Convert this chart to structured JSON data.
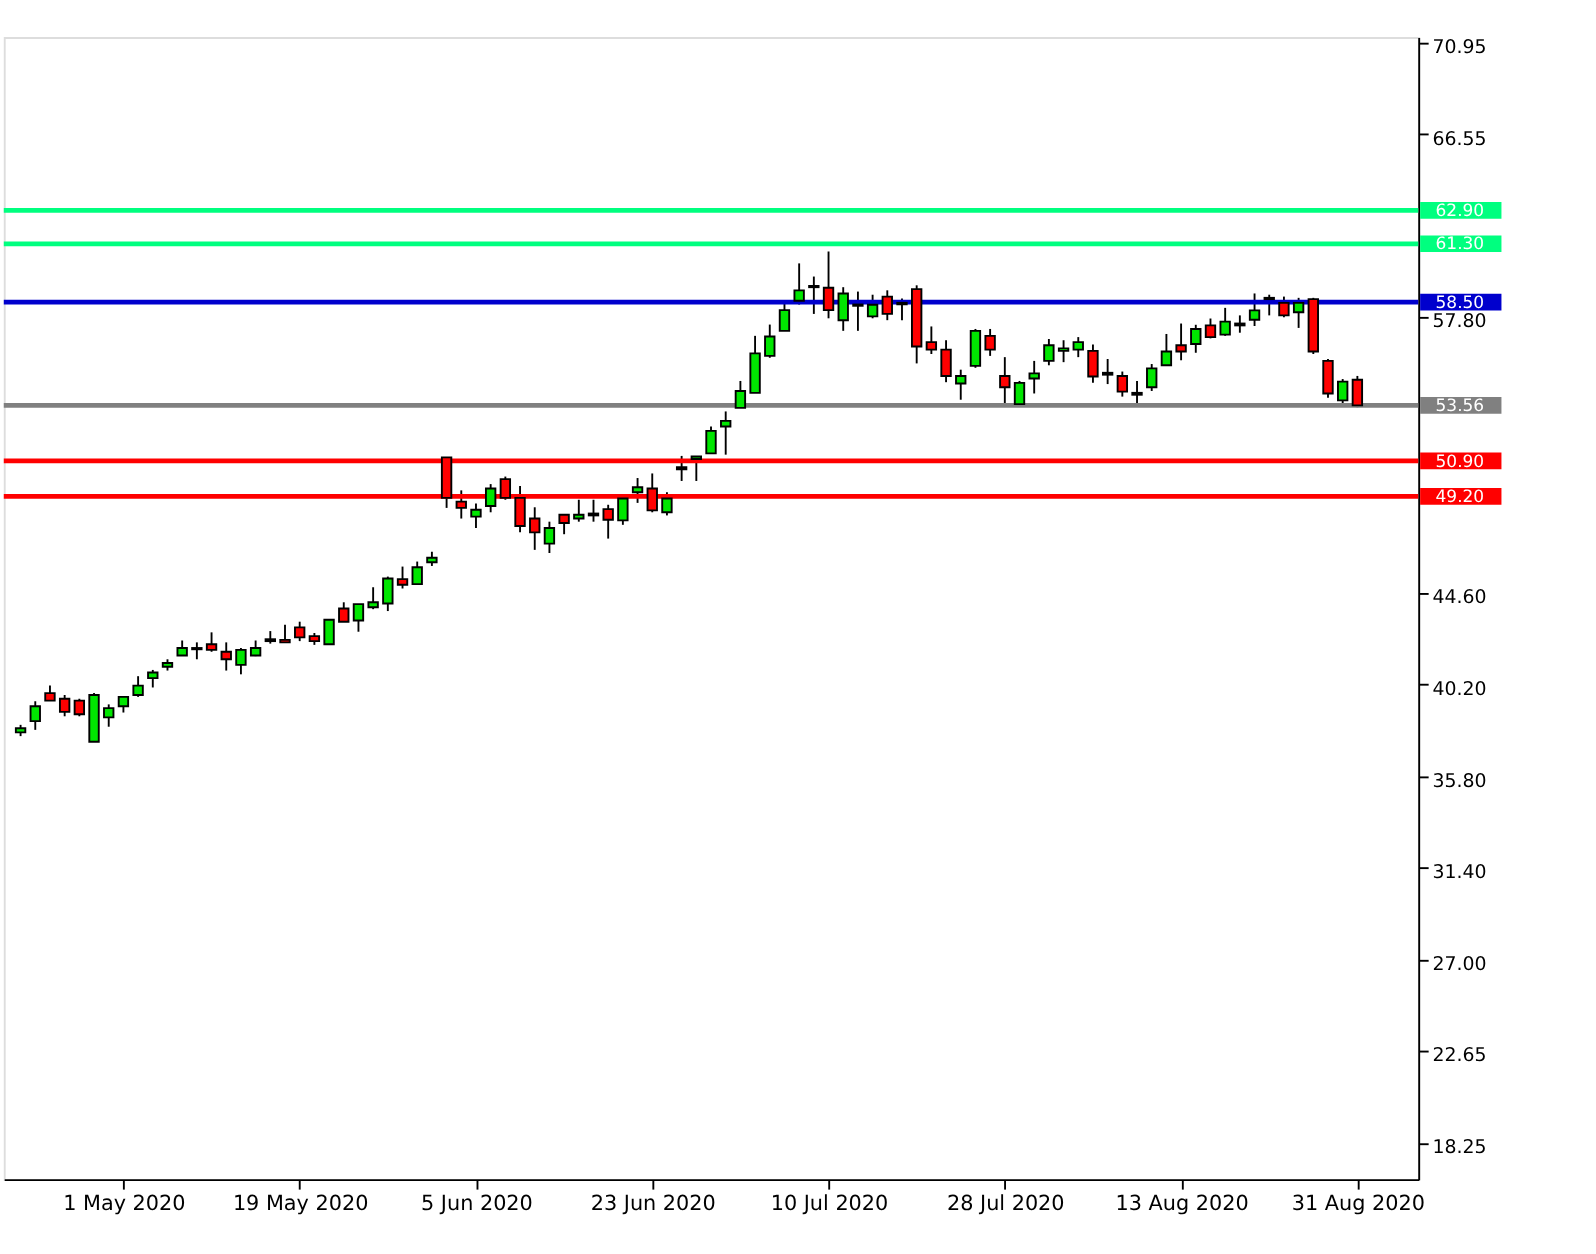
{
  "chart_data": {
    "type": "candlestick",
    "categories": [
      null,
      null,
      null,
      null,
      null,
      null,
      null,
      "1 May 2020",
      null,
      null,
      null,
      null,
      null,
      null,
      null,
      null,
      null,
      null,
      null,
      "19 May 2020",
      null,
      null,
      null,
      null,
      null,
      null,
      null,
      null,
      null,
      null,
      null,
      "5 Jun 2020",
      null,
      null,
      null,
      null,
      null,
      null,
      null,
      null,
      null,
      null,
      null,
      "23 Jun 2020",
      null,
      null,
      null,
      null,
      null,
      null,
      null,
      null,
      null,
      null,
      null,
      "10 Jul 2020",
      null,
      null,
      null,
      null,
      null,
      null,
      null,
      null,
      null,
      null,
      null,
      "28 Jul 2020",
      null,
      null,
      null,
      null,
      null,
      null,
      null,
      null,
      null,
      null,
      null,
      "13 Aug 2020",
      null,
      null,
      null,
      null,
      null,
      null,
      null,
      null,
      null,
      null,
      null,
      "31 Aug 2020"
    ],
    "ohlc": [
      [
        37.9,
        38.26,
        37.72,
        38.1
      ],
      [
        38.44,
        39.39,
        38.02,
        39.15
      ],
      [
        39.78,
        40.14,
        39.42,
        39.42
      ],
      [
        39.51,
        39.69,
        38.67,
        38.88
      ],
      [
        39.42,
        39.51,
        38.67,
        38.77
      ],
      [
        37.45,
        39.78,
        37.45,
        39.69
      ],
      [
        38.62,
        39.24,
        38.17,
        39.06
      ],
      [
        39.15,
        39.6,
        38.85,
        39.6
      ],
      [
        39.69,
        40.59,
        39.6,
        40.14
      ],
      [
        40.5,
        40.89,
        40.05,
        40.77
      ],
      [
        41.04,
        41.4,
        40.86,
        41.22
      ],
      [
        41.58,
        42.3,
        41.58,
        41.94
      ],
      [
        41.88,
        42.21,
        41.4,
        41.94
      ],
      [
        42.12,
        42.69,
        41.76,
        41.85
      ],
      [
        41.76,
        42.21,
        40.86,
        41.4
      ],
      [
        41.13,
        41.94,
        40.68,
        41.85
      ],
      [
        41.58,
        42.3,
        41.55,
        41.94
      ],
      [
        42.27,
        42.75,
        42.15,
        42.36
      ],
      [
        42.33,
        43.05,
        42.21,
        42.21
      ],
      [
        42.93,
        43.2,
        42.27,
        42.45
      ],
      [
        42.51,
        42.66,
        42.09,
        42.27
      ],
      [
        42.12,
        43.29,
        42.12,
        43.29
      ],
      [
        43.83,
        44.13,
        43.2,
        43.2
      ],
      [
        43.26,
        44.04,
        42.72,
        44.04
      ],
      [
        43.89,
        44.85,
        43.8,
        44.13
      ],
      [
        44.07,
        45.36,
        43.71,
        45.27
      ],
      [
        45.24,
        45.84,
        44.79,
        44.97
      ],
      [
        45.0,
        46.08,
        45.0,
        45.81
      ],
      [
        46.05,
        46.55,
        45.87,
        46.26
      ],
      [
        51.07,
        51.08,
        48.65,
        49.13
      ],
      [
        48.95,
        49.49,
        48.14,
        48.65
      ],
      [
        48.23,
        48.86,
        47.69,
        48.56
      ],
      [
        48.74,
        49.79,
        48.44,
        49.58
      ],
      [
        50.03,
        50.15,
        49.04,
        49.13
      ],
      [
        49.13,
        49.7,
        47.48,
        47.78
      ],
      [
        48.14,
        48.68,
        46.64,
        47.48
      ],
      [
        46.94,
        47.99,
        46.49,
        47.69
      ],
      [
        48.32,
        48.32,
        47.39,
        47.93
      ],
      [
        48.14,
        49.04,
        47.99,
        48.32
      ],
      [
        48.29,
        49.04,
        47.99,
        48.38
      ],
      [
        48.59,
        48.8,
        47.18,
        48.08
      ],
      [
        48.05,
        49.1,
        47.84,
        49.1
      ],
      [
        49.4,
        50.08,
        48.89,
        49.64
      ],
      [
        49.58,
        50.3,
        48.44,
        48.53
      ],
      [
        48.44,
        49.4,
        48.29,
        49.1
      ],
      [
        50.5,
        51.14,
        49.94,
        50.6
      ],
      [
        50.99,
        51.11,
        49.94,
        51.11
      ],
      [
        51.26,
        52.55,
        51.26,
        52.34
      ],
      [
        52.55,
        53.27,
        51.2,
        52.82
      ],
      [
        53.44,
        54.73,
        53.44,
        54.25
      ],
      [
        54.16,
        56.89,
        54.16,
        56.05
      ],
      [
        55.93,
        57.43,
        55.84,
        56.86
      ],
      [
        57.13,
        58.54,
        57.13,
        58.12
      ],
      [
        58.57,
        60.36,
        58.39,
        59.07
      ],
      [
        59.22,
        59.73,
        57.94,
        59.28
      ],
      [
        59.19,
        60.93,
        57.73,
        58.12
      ],
      [
        57.64,
        59.22,
        57.13,
        58.92
      ],
      [
        58.33,
        59.01,
        57.13,
        58.39
      ],
      [
        57.82,
        58.86,
        57.73,
        58.38
      ],
      [
        58.77,
        59.07,
        57.64,
        57.94
      ],
      [
        58.47,
        58.68,
        57.64,
        58.4
      ],
      [
        59.13,
        59.31,
        55.57,
        56.38
      ],
      [
        56.59,
        57.34,
        56.02,
        56.23
      ],
      [
        56.23,
        56.68,
        54.67,
        54.97
      ],
      [
        54.61,
        55.27,
        53.83,
        54.97
      ],
      [
        55.45,
        57.22,
        55.36,
        57.13
      ],
      [
        56.89,
        57.22,
        55.93,
        56.23
      ],
      [
        54.97,
        55.87,
        53.53,
        54.43
      ],
      [
        53.62,
        54.73,
        53.53,
        54.64
      ],
      [
        54.85,
        55.69,
        54.13,
        55.09
      ],
      [
        55.69,
        56.74,
        55.48,
        56.44
      ],
      [
        56.17,
        56.68,
        55.63,
        56.29
      ],
      [
        56.23,
        56.83,
        55.87,
        56.59
      ],
      [
        56.17,
        56.47,
        54.64,
        54.94
      ],
      [
        55.03,
        55.78,
        54.58,
        55.12
      ],
      [
        54.97,
        55.18,
        53.98,
        54.22
      ],
      [
        54.16,
        54.73,
        53.59,
        54.07
      ],
      [
        54.43,
        55.54,
        54.25,
        55.33
      ],
      [
        55.48,
        56.98,
        55.48,
        56.14
      ],
      [
        56.44,
        57.48,
        55.72,
        56.14
      ],
      [
        56.5,
        57.42,
        56.08,
        57.22
      ],
      [
        57.39,
        57.72,
        56.77,
        56.83
      ],
      [
        56.95,
        58.23,
        56.89,
        57.57
      ],
      [
        57.39,
        57.87,
        57.04,
        57.48
      ],
      [
        57.66,
        58.92,
        57.36,
        58.11
      ],
      [
        58.65,
        58.86,
        57.87,
        58.71
      ],
      [
        58.47,
        58.77,
        57.78,
        57.87
      ],
      [
        58.02,
        58.71,
        57.27,
        58.47
      ],
      [
        58.65,
        58.71,
        56.02,
        56.14
      ],
      [
        55.69,
        55.78,
        53.92,
        54.13
      ],
      [
        53.8,
        54.82,
        53.53,
        54.7
      ],
      [
        54.79,
        54.97,
        53.47,
        53.56
      ]
    ],
    "colors": [
      "#00e600",
      "#00e600",
      "#ff0000",
      "#ff0000",
      "#ff0000",
      "#00e600",
      "#00e600",
      "#00e600",
      "#00e600",
      "#00e600",
      "#00e600",
      "#00e600",
      "#00e600",
      "#ff0000",
      "#ff0000",
      "#00e600",
      "#00e600",
      "#00e600",
      "#ff0000",
      "#ff0000",
      "#ff0000",
      "#00e600",
      "#ff0000",
      "#00e600",
      "#00e600",
      "#00e600",
      "#ff0000",
      "#00e600",
      "#00e600",
      "#ff0000",
      "#ff0000",
      "#00e600",
      "#00e600",
      "#ff0000",
      "#ff0000",
      "#ff0000",
      "#00e600",
      "#ff0000",
      "#00e600",
      "#00e600",
      "#ff0000",
      "#00e600",
      "#00e600",
      "#ff0000",
      "#00e600",
      "#00e600",
      "#00e600",
      "#00e600",
      "#00e600",
      "#00e600",
      "#00e600",
      "#00e600",
      "#00e600",
      "#00e600",
      "#00e600",
      "#ff0000",
      "#00e600",
      "#00e600",
      "#00e600",
      "#ff0000",
      "#ff0000",
      "#ff0000",
      "#ff0000",
      "#ff0000",
      "#00e600",
      "#00e600",
      "#ff0000",
      "#ff0000",
      "#00e600",
      "#00e600",
      "#00e600",
      "#00e600",
      "#00e600",
      "#ff0000",
      "#00e600",
      "#ff0000",
      "#ff0000",
      "#00e600",
      "#00e600",
      "#ff0000",
      "#00e600",
      "#ff0000",
      "#00e600",
      "#00e600",
      "#00e600",
      "#00e600",
      "#ff0000",
      "#00e600",
      "#ff0000",
      "#ff0000",
      "#00e600",
      "#ff0000"
    ],
    "ylim": [
      16.5,
      71.2
    ],
    "yticks": [
      18.25,
      22.65,
      {
        "value": 27.0,
        "label": "27.00"
      },
      {
        "value": 31.4,
        "label": "31.40"
      },
      {
        "value": 35.8,
        "label": "35.80"
      },
      {
        "value": 40.2,
        "label": "40.20"
      },
      {
        "value": 44.6,
        "label": "44.60"
      },
      {
        "value": 57.8,
        "label": "57.80"
      },
      66.55,
      70.95
    ],
    "ref_lines": [
      {
        "axis": "y",
        "value": 62.9,
        "label": "62.90",
        "color": "#00ff7f"
      },
      {
        "axis": "y",
        "value": 61.3,
        "label": "61.30",
        "color": "#00ff7f"
      },
      {
        "axis": "y",
        "value": 58.5,
        "label": "58.50",
        "color": "#0000cd"
      },
      {
        "axis": "y",
        "value": 53.56,
        "label": "53.56",
        "color": "#808080"
      },
      {
        "axis": "y",
        "value": 50.9,
        "label": "50.90",
        "color": "#ff0000"
      },
      {
        "axis": "y",
        "value": 49.2,
        "label": "49.20",
        "color": "#ff0000"
      }
    ]
  }
}
